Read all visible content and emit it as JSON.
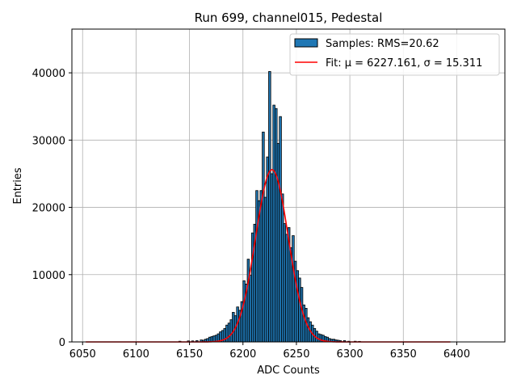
{
  "chart_data": {
    "type": "bar",
    "title": "Run 699, channel015, Pedestal",
    "xlabel": "ADC Counts",
    "ylabel": "Entries",
    "xlim": [
      6040,
      6445
    ],
    "ylim": [
      0,
      46500
    ],
    "xticks": [
      6050,
      6100,
      6150,
      6200,
      6250,
      6300,
      6350,
      6400
    ],
    "yticks": [
      0,
      10000,
      20000,
      30000,
      40000
    ],
    "grid": true,
    "legend_position": "top-right",
    "legend": {
      "samples_label": "Samples: RMS=20.62",
      "fit_label": "Fit: μ = 6227.161, σ = 15.311"
    },
    "colors": {
      "bar_fill": "#1f77b4",
      "bar_edge": "#000000",
      "fit_line": "#ff0000",
      "grid": "#b0b0b0"
    },
    "histogram": {
      "bin_width": 2,
      "bins": [
        [
          6140,
          100
        ],
        [
          6148,
          150
        ],
        [
          6152,
          150
        ],
        [
          6156,
          200
        ],
        [
          6160,
          300
        ],
        [
          6162,
          250
        ],
        [
          6164,
          400
        ],
        [
          6166,
          500
        ],
        [
          6168,
          700
        ],
        [
          6170,
          800
        ],
        [
          6172,
          900
        ],
        [
          6174,
          1000
        ],
        [
          6176,
          1200
        ],
        [
          6178,
          1500
        ],
        [
          6180,
          1700
        ],
        [
          6182,
          2000
        ],
        [
          6184,
          2500
        ],
        [
          6186,
          2800
        ],
        [
          6188,
          3300
        ],
        [
          6190,
          4400
        ],
        [
          6192,
          3900
        ],
        [
          6194,
          5200
        ],
        [
          6196,
          4700
        ],
        [
          6198,
          6000
        ],
        [
          6200,
          9100
        ],
        [
          6202,
          8600
        ],
        [
          6204,
          12300
        ],
        [
          6206,
          9900
        ],
        [
          6208,
          16200
        ],
        [
          6210,
          17500
        ],
        [
          6212,
          22500
        ],
        [
          6214,
          21000
        ],
        [
          6216,
          22500
        ],
        [
          6218,
          31200
        ],
        [
          6220,
          21500
        ],
        [
          6222,
          27500
        ],
        [
          6224,
          40200
        ],
        [
          6226,
          25000
        ],
        [
          6228,
          35200
        ],
        [
          6230,
          34700
        ],
        [
          6232,
          29500
        ],
        [
          6234,
          33500
        ],
        [
          6236,
          22000
        ],
        [
          6238,
          17600
        ],
        [
          6240,
          16000
        ],
        [
          6242,
          17000
        ],
        [
          6244,
          14000
        ],
        [
          6246,
          15800
        ],
        [
          6248,
          12000
        ],
        [
          6250,
          10600
        ],
        [
          6252,
          9500
        ],
        [
          6254,
          8100
        ],
        [
          6256,
          5500
        ],
        [
          6258,
          5000
        ],
        [
          6260,
          3600
        ],
        [
          6262,
          3000
        ],
        [
          6264,
          2500
        ],
        [
          6266,
          2000
        ],
        [
          6268,
          1600
        ],
        [
          6270,
          1200
        ],
        [
          6272,
          1100
        ],
        [
          6274,
          1000
        ],
        [
          6276,
          800
        ],
        [
          6278,
          700
        ],
        [
          6280,
          500
        ],
        [
          6282,
          400
        ],
        [
          6284,
          400
        ],
        [
          6286,
          300
        ],
        [
          6288,
          250
        ],
        [
          6290,
          200
        ],
        [
          6294,
          200
        ],
        [
          6298,
          100
        ],
        [
          6304,
          100
        ],
        [
          6308,
          80
        ]
      ]
    },
    "fit": {
      "type": "gaussian",
      "mu": 6227.161,
      "sigma": 15.311,
      "amplitude": 25600,
      "x_range": [
        6053,
        6394
      ]
    }
  }
}
